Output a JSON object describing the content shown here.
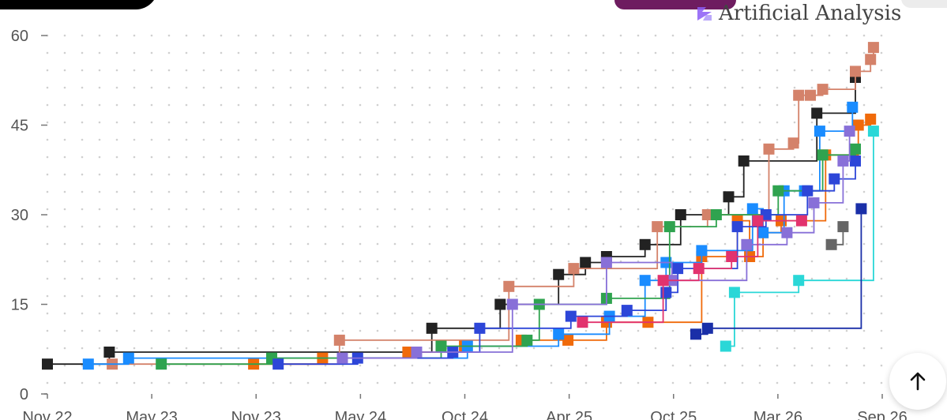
{
  "brand": {
    "name": "Artificial Analysis",
    "icon": "artificial-analysis-logo-icon",
    "color": "#8b5cf6"
  },
  "scroll_top_button": {
    "icon": "arrow-up-icon"
  },
  "chart_data": {
    "type": "line",
    "title": "",
    "xlabel": "",
    "ylabel": "",
    "step": true,
    "grid": "dotted",
    "legend": "none",
    "x_ticks": [
      "Nov 22",
      "May 23",
      "Nov 23",
      "May 24",
      "Oct 24",
      "Apr 25",
      "Oct 25",
      "Mar 26",
      "Sep 26"
    ],
    "y_ticks": [
      0,
      15,
      30,
      45,
      60
    ],
    "ylim": [
      0,
      60
    ],
    "xlim": [
      "2022-11-01",
      "2026-09-30"
    ],
    "series": [
      {
        "color": "#222222",
        "points": [
          [
            "2022-11-01",
            5
          ],
          [
            "2023-02-15",
            7
          ],
          [
            "2024-08-20",
            11
          ],
          [
            "2024-12-15",
            15
          ],
          [
            "2025-03-25",
            20
          ],
          [
            "2025-05-10",
            22
          ],
          [
            "2025-06-15",
            23
          ],
          [
            "2025-08-20",
            25
          ],
          [
            "2025-10-20",
            30
          ],
          [
            "2026-01-10",
            33
          ],
          [
            "2026-02-05",
            39
          ],
          [
            "2026-06-10",
            47
          ],
          [
            "2026-08-15",
            53
          ]
        ]
      },
      {
        "color": "#d4826a",
        "points": [
          [
            "2023-02-20",
            5
          ],
          [
            "2024-03-15",
            9
          ],
          [
            "2024-12-30",
            18
          ],
          [
            "2025-04-20",
            21
          ],
          [
            "2025-09-10",
            28
          ],
          [
            "2025-12-05",
            30
          ],
          [
            "2026-03-20",
            41
          ],
          [
            "2026-05-01",
            42
          ],
          [
            "2026-05-10",
            50
          ],
          [
            "2026-05-30",
            50
          ],
          [
            "2026-06-20",
            51
          ],
          [
            "2026-08-15",
            54
          ],
          [
            "2026-09-10",
            56
          ],
          [
            "2026-09-15",
            58
          ]
        ]
      },
      {
        "color": "#f06a0a",
        "points": [
          [
            "2023-10-20",
            5
          ],
          [
            "2024-02-15",
            6
          ],
          [
            "2024-07-10",
            7
          ],
          [
            "2024-10-15",
            8
          ],
          [
            "2025-01-20",
            9
          ],
          [
            "2025-04-10",
            9
          ],
          [
            "2025-06-15",
            12
          ],
          [
            "2025-08-25",
            12
          ],
          [
            "2025-11-25",
            23
          ],
          [
            "2026-01-25",
            29
          ],
          [
            "2026-02-15",
            23
          ],
          [
            "2026-03-10",
            27
          ],
          [
            "2026-04-10",
            29
          ],
          [
            "2026-06-25",
            40
          ],
          [
            "2026-08-20",
            45
          ],
          [
            "2026-09-10",
            46
          ]
        ]
      },
      {
        "color": "#1a8cff",
        "points": [
          [
            "2023-01-10",
            5
          ],
          [
            "2023-03-20",
            6
          ],
          [
            "2024-10-20",
            8
          ],
          [
            "2025-03-25",
            10
          ],
          [
            "2025-06-20",
            13
          ],
          [
            "2025-08-20",
            19
          ],
          [
            "2025-09-25",
            22
          ],
          [
            "2025-11-25",
            24
          ],
          [
            "2026-02-20",
            31
          ],
          [
            "2026-03-10",
            27
          ],
          [
            "2026-04-15",
            34
          ],
          [
            "2026-05-20",
            34
          ],
          [
            "2026-06-15",
            44
          ],
          [
            "2026-08-10",
            48
          ]
        ]
      },
      {
        "color": "#2fa34f",
        "points": [
          [
            "2023-05-15",
            5
          ],
          [
            "2023-11-20",
            6
          ],
          [
            "2024-09-05",
            8
          ],
          [
            "2025-01-30",
            9
          ],
          [
            "2025-02-20",
            15
          ],
          [
            "2025-06-15",
            16
          ],
          [
            "2025-10-01",
            28
          ],
          [
            "2025-12-20",
            30
          ],
          [
            "2026-04-05",
            34
          ],
          [
            "2026-06-20",
            40
          ],
          [
            "2026-08-15",
            41
          ]
        ]
      },
      {
        "color": "#2d46d8",
        "points": [
          [
            "2023-12-01",
            5
          ],
          [
            "2024-04-15",
            6
          ],
          [
            "2024-09-25",
            7
          ],
          [
            "2024-11-10",
            11
          ],
          [
            "2025-04-15",
            13
          ],
          [
            "2025-07-20",
            14
          ],
          [
            "2025-09-25",
            17
          ],
          [
            "2025-10-15",
            21
          ],
          [
            "2026-01-25",
            28
          ],
          [
            "2026-03-15",
            30
          ],
          [
            "2026-05-25",
            34
          ],
          [
            "2026-07-10",
            36
          ],
          [
            "2026-08-15",
            39
          ]
        ]
      },
      {
        "color": "#8870d8",
        "points": [
          [
            "2024-03-20",
            6
          ],
          [
            "2024-07-25",
            7
          ],
          [
            "2025-01-05",
            15
          ],
          [
            "2025-06-15",
            22
          ],
          [
            "2025-10-05",
            19
          ],
          [
            "2026-02-10",
            25
          ],
          [
            "2026-04-20",
            27
          ],
          [
            "2026-06-05",
            32
          ],
          [
            "2026-07-25",
            39
          ],
          [
            "2026-08-05",
            44
          ]
        ]
      },
      {
        "color": "#e2336e",
        "points": [
          [
            "2025-05-05",
            12
          ],
          [
            "2025-09-20",
            19
          ],
          [
            "2025-11-20",
            21
          ],
          [
            "2026-01-15",
            23
          ],
          [
            "2026-03-01",
            29
          ],
          [
            "2026-05-15",
            29
          ]
        ]
      },
      {
        "color": "#2ad7d7",
        "points": [
          [
            "2026-01-05",
            8
          ],
          [
            "2026-01-20",
            17
          ],
          [
            "2026-05-10",
            19
          ],
          [
            "2026-09-15",
            44
          ]
        ]
      },
      {
        "color": "#1a2fa8",
        "points": [
          [
            "2025-11-15",
            10
          ],
          [
            "2025-12-05",
            11
          ],
          [
            "2026-08-25",
            31
          ]
        ]
      },
      {
        "color": "#666666",
        "points": [
          [
            "2026-07-05",
            25
          ],
          [
            "2026-07-25",
            28
          ]
        ]
      }
    ]
  }
}
